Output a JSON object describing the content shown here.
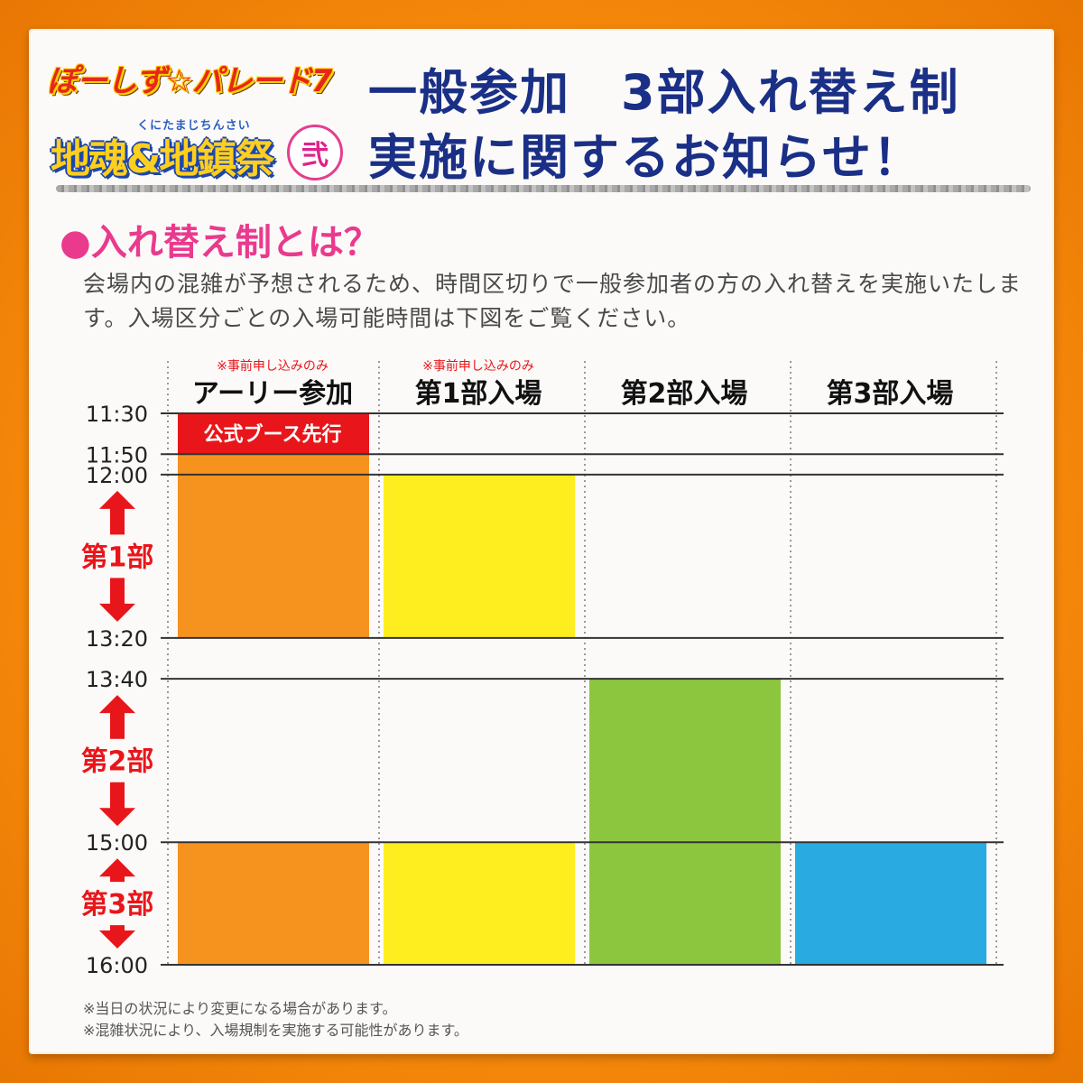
{
  "header": {
    "logo_primary": "ぽーしず☆パレード7",
    "logo_secondary": "地魂&地鎮祭",
    "logo_secondary_ruby": "くにたまじちんさい",
    "logo_secondary_badge": "弐",
    "title_line1": "一般参加　3部入れ替え制",
    "title_line2": "実施に関するお知らせ！"
  },
  "section": {
    "heading": "●入れ替え制とは？",
    "description": "会場内の混雑が予想されるため、時間区切りで一般参加者の方の入れ替えを実施いたします。入場区分ごとの入場可能時間は下図をご覧ください。"
  },
  "footnotes": [
    "※当日の状況により変更になる場合があります。",
    "※混雑状況により、入場規制を実施する可能性があります。"
  ],
  "chart_data": {
    "type": "timetable",
    "columns": [
      {
        "label": "アーリー参加",
        "note": "※事前申し込みのみ"
      },
      {
        "label": "第1部入場",
        "note": "※事前申し込みのみ"
      },
      {
        "label": "第2部入場",
        "note": ""
      },
      {
        "label": "第3部入場",
        "note": ""
      }
    ],
    "y_ticks": [
      "11:30",
      "11:50",
      "12:00",
      "13:20",
      "13:40",
      "15:00",
      "16:00"
    ],
    "y_range": [
      "11:30",
      "16:00"
    ],
    "periods": [
      {
        "label": "第1部",
        "start": "12:00",
        "end": "13:20"
      },
      {
        "label": "第2部",
        "start": "13:40",
        "end": "15:00"
      },
      {
        "label": "第3部",
        "start": "15:00",
        "end": "16:00"
      }
    ],
    "bars": [
      {
        "column": 0,
        "start": "11:30",
        "end": "11:50",
        "label": "公式ブース先行",
        "color": "#e8161b"
      },
      {
        "column": 0,
        "start": "11:50",
        "end": "13:20",
        "label": "",
        "color": "#f6931f"
      },
      {
        "column": 0,
        "start": "15:00",
        "end": "16:00",
        "label": "",
        "color": "#f6931f"
      },
      {
        "column": 1,
        "start": "12:00",
        "end": "13:20",
        "label": "",
        "color": "#ffee1f"
      },
      {
        "column": 1,
        "start": "15:00",
        "end": "16:00",
        "label": "",
        "color": "#ffee1f"
      },
      {
        "column": 2,
        "start": "13:40",
        "end": "16:00",
        "label": "",
        "color": "#8cc63f"
      },
      {
        "column": 3,
        "start": "15:00",
        "end": "16:00",
        "label": "",
        "color": "#29abe2"
      }
    ],
    "colors": {
      "accent_red": "#e8161b",
      "heading_pink": "#ea3a8e",
      "title_navy": "#1a2f86"
    }
  }
}
